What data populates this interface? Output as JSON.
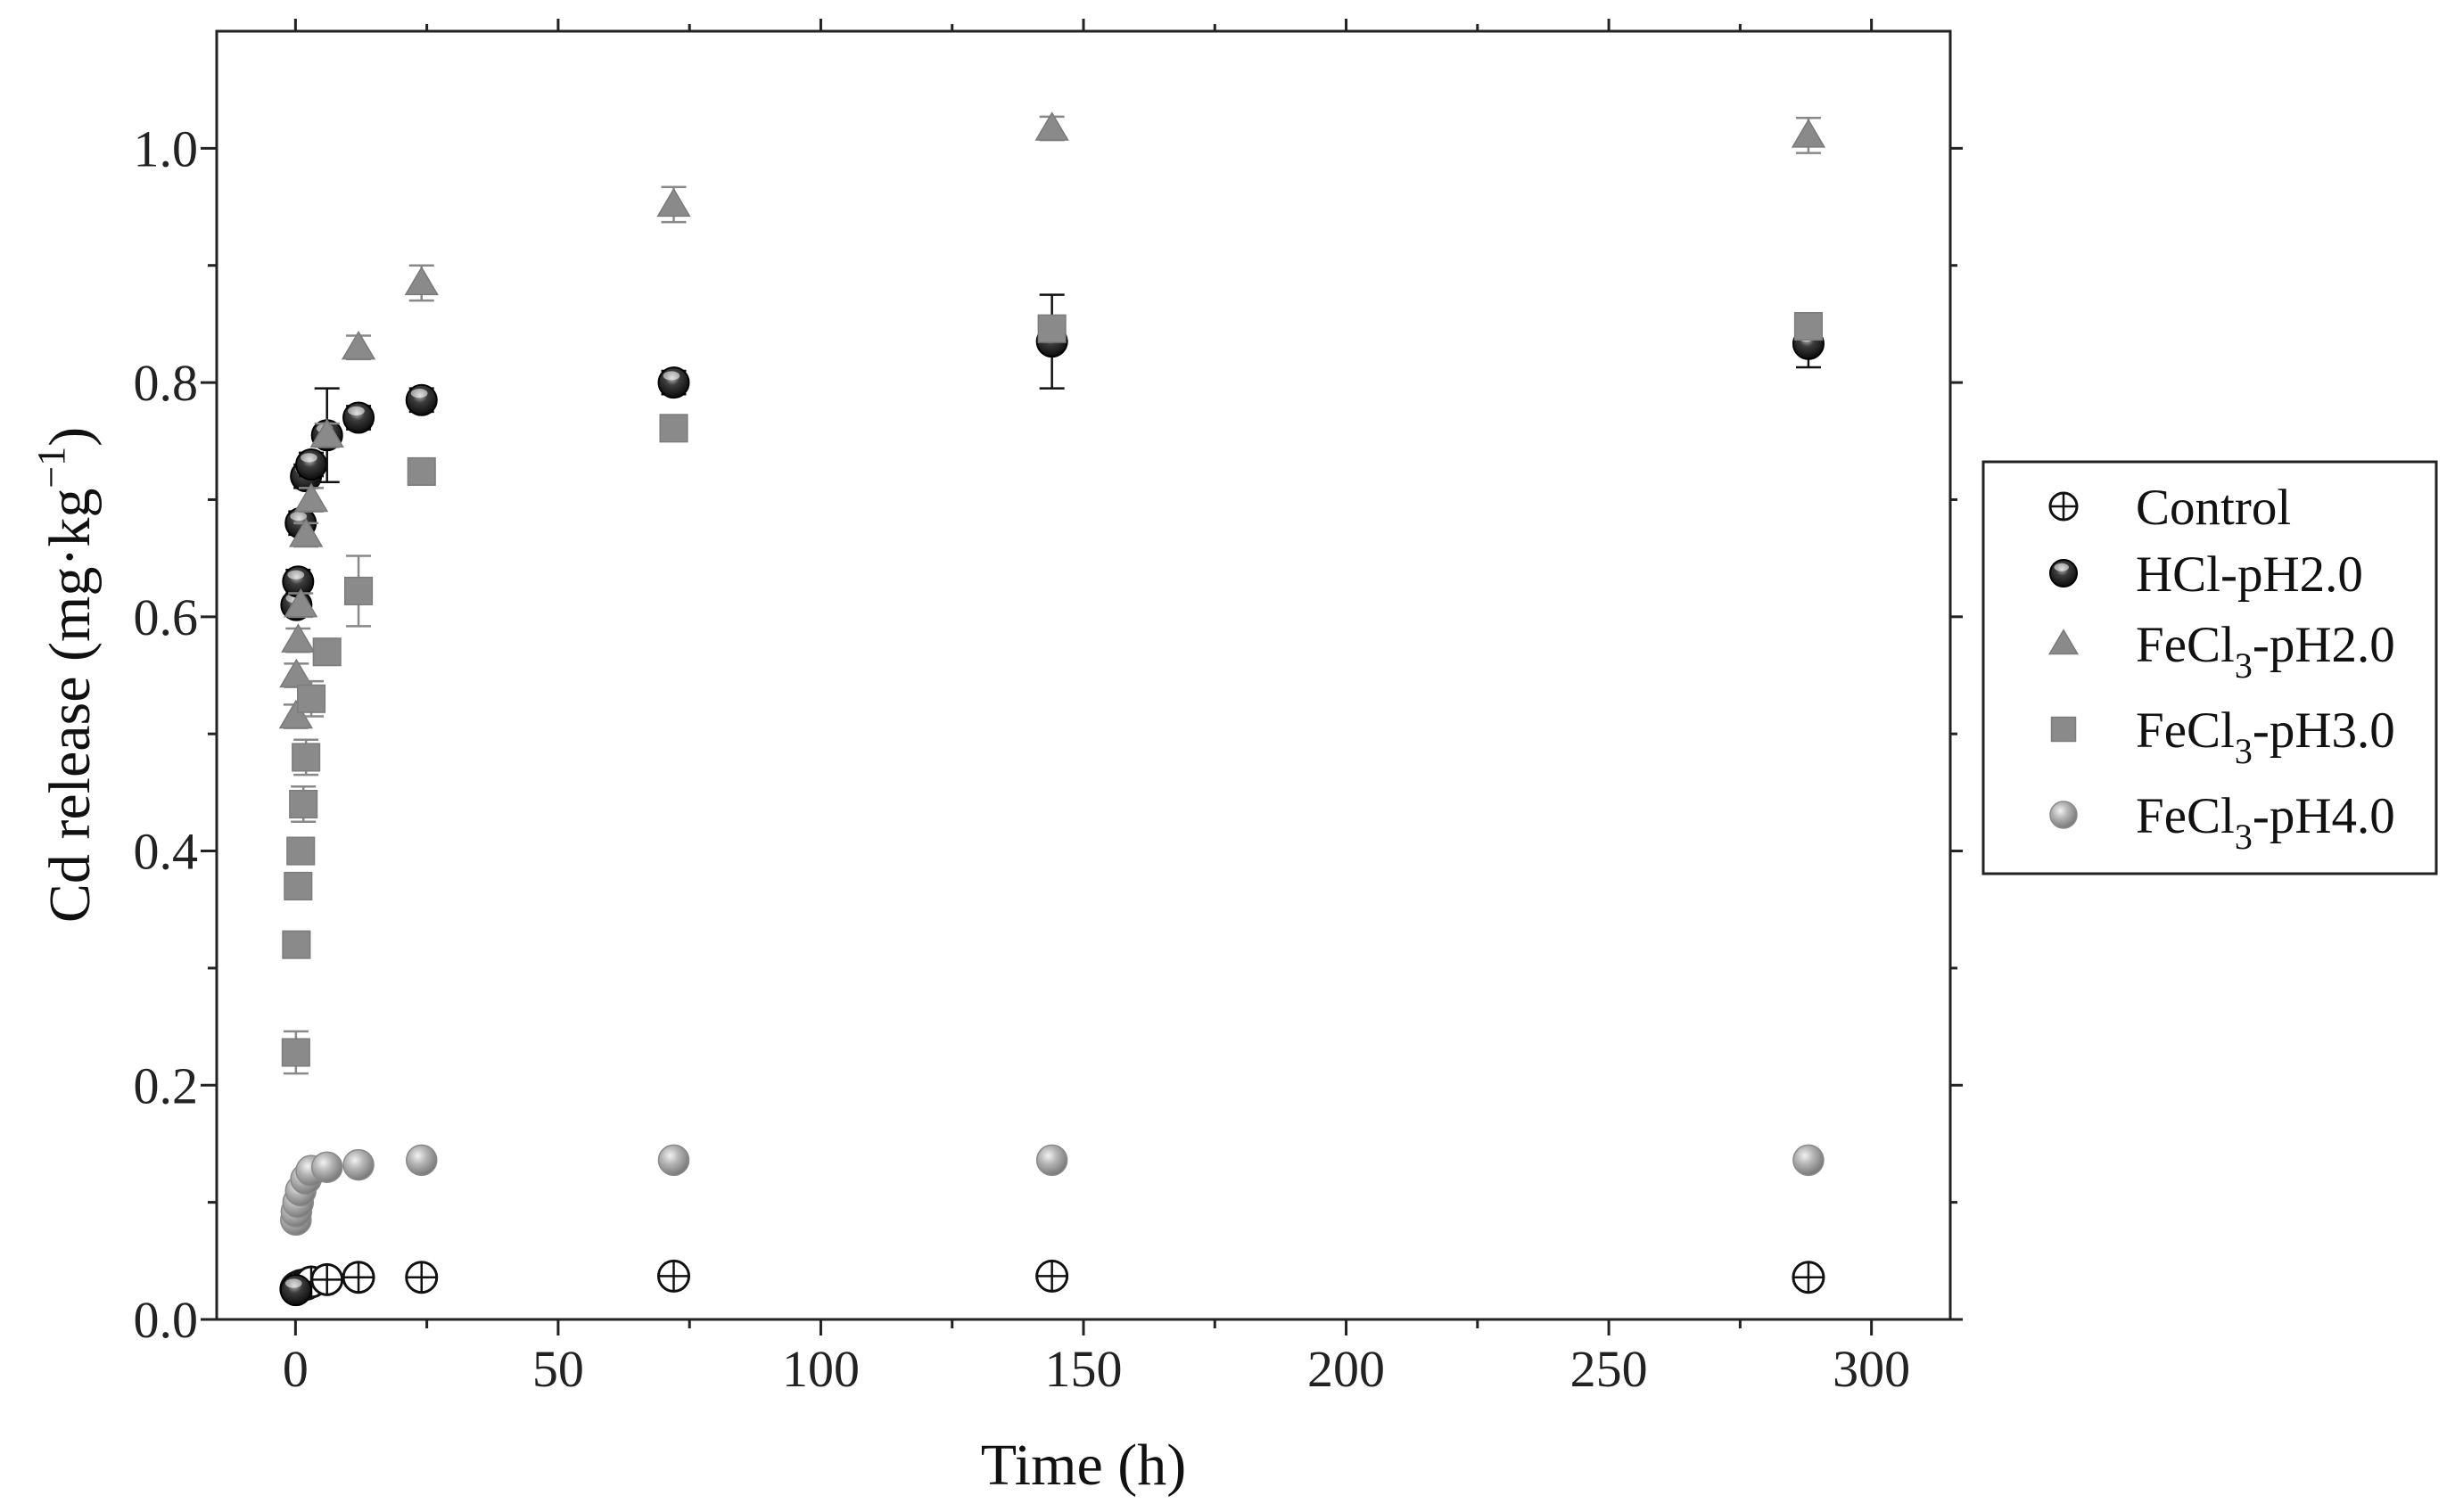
{
  "chart_data": {
    "type": "scatter",
    "title": "",
    "xlabel": "Time (h)",
    "ylabel": "Cd release (mg·kg⁻¹)",
    "ylabel_parts": {
      "text": "Cd release (mg·kg",
      "sup": "−1",
      "close": ")"
    },
    "xlim": [
      -15,
      315
    ],
    "ylim": [
      0.0,
      1.1
    ],
    "x_ticks": [
      0,
      50,
      100,
      150,
      200,
      250,
      300
    ],
    "y_ticks": [
      0.0,
      0.2,
      0.4,
      0.6,
      0.8,
      1.0
    ],
    "x_tick_labels": [
      "0",
      "50",
      "100",
      "150",
      "200",
      "250",
      "300"
    ],
    "y_tick_labels": [
      "0.0",
      "0.2",
      "0.4",
      "0.6",
      "0.8",
      "1.0"
    ],
    "grid": false,
    "legend_position": "right",
    "series": [
      {
        "name": "Control",
        "legend_parts": {
          "base": "Control",
          "sub": "",
          "suffix": ""
        },
        "marker": "circle-open",
        "color": "#111111",
        "x": [
          0.08,
          0.17,
          0.5,
          1,
          2,
          3,
          6,
          12,
          24,
          72,
          144,
          288
        ],
        "y": [
          0.026,
          0.027,
          0.028,
          0.029,
          0.03,
          0.032,
          0.034,
          0.036,
          0.036,
          0.037,
          0.037,
          0.036
        ],
        "err": [
          0,
          0,
          0,
          0,
          0,
          0,
          0,
          0,
          0,
          0,
          0,
          0
        ]
      },
      {
        "name": "HCl-pH2.0",
        "legend_parts": {
          "base": "HCl-pH2.0",
          "sub": "",
          "suffix": ""
        },
        "marker": "circle-half",
        "color": "#111111",
        "x": [
          0.08,
          0.17,
          0.5,
          1,
          2,
          3,
          6,
          12,
          24,
          72,
          144,
          288
        ],
        "y": [
          0.025,
          0.61,
          0.63,
          0.68,
          0.72,
          0.73,
          0.755,
          0.77,
          0.785,
          0.8,
          0.835,
          0.833
        ],
        "err": [
          0,
          0,
          0.01,
          0.01,
          0.01,
          0.01,
          0.04,
          0.01,
          0.01,
          0.01,
          0.04,
          0.02
        ]
      },
      {
        "name": "FeCl3-pH2.0",
        "legend_parts": {
          "base": "FeCl",
          "sub": "3",
          "suffix": "-pH2.0"
        },
        "marker": "triangle",
        "color": "#8a8a8a",
        "x": [
          0.08,
          0.17,
          0.5,
          1,
          2,
          3,
          6,
          12,
          24,
          72,
          144,
          288
        ],
        "y": [
          0.515,
          0.55,
          0.58,
          0.61,
          0.67,
          0.7,
          0.755,
          0.83,
          0.885,
          0.952,
          1.017,
          1.011
        ],
        "err": [
          0.01,
          0.01,
          0.01,
          0.01,
          0.01,
          0.01,
          0.01,
          0.01,
          0.015,
          0.015,
          0.01,
          0.015
        ]
      },
      {
        "name": "FeCl3-pH3.0",
        "legend_parts": {
          "base": "FeCl",
          "sub": "3",
          "suffix": "-pH3.0"
        },
        "marker": "square",
        "color": "#8a8a8a",
        "x": [
          0.08,
          0.17,
          0.5,
          1,
          1.5,
          2,
          3,
          6,
          12,
          24,
          72,
          144,
          288
        ],
        "y": [
          0.228,
          0.32,
          0.37,
          0.4,
          0.44,
          0.48,
          0.53,
          0.57,
          0.622,
          0.724,
          0.761,
          0.846,
          0.848
        ],
        "err": [
          0.018,
          0.01,
          0.01,
          0.01,
          0.015,
          0.015,
          0.015,
          0.01,
          0.03,
          0.01,
          0.01,
          0.01,
          0.01
        ]
      },
      {
        "name": "FeCl3-pH4.0",
        "legend_parts": {
          "base": "FeCl",
          "sub": "3",
          "suffix": "-pH4.0"
        },
        "marker": "circle-gray",
        "color": "#999999",
        "x": [
          0.08,
          0.17,
          0.5,
          1,
          2,
          3,
          6,
          12,
          24,
          72,
          144,
          288
        ],
        "y": [
          0.085,
          0.092,
          0.1,
          0.11,
          0.12,
          0.127,
          0.13,
          0.132,
          0.136,
          0.136,
          0.136,
          0.136
        ],
        "err": [
          0,
          0,
          0,
          0,
          0,
          0,
          0,
          0,
          0,
          0,
          0,
          0
        ]
      }
    ]
  }
}
